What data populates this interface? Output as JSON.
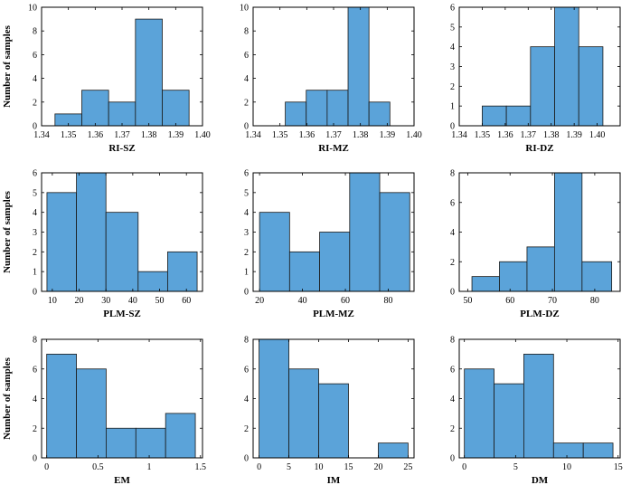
{
  "figure": {
    "bar_color": "#5ba3d9",
    "edge_color": "#1a1a1a"
  },
  "chart_data": [
    {
      "type": "bar",
      "name": "RI-SZ",
      "xlabel": "RI-SZ",
      "ylabel": "Number of samples",
      "bin_edges": [
        1.345,
        1.355,
        1.365,
        1.375,
        1.385,
        1.395
      ],
      "values": [
        1,
        3,
        2,
        9,
        3
      ],
      "xlim": [
        1.34,
        1.4
      ],
      "ylim": [
        0,
        10
      ],
      "xticks": [
        1.34,
        1.35,
        1.36,
        1.37,
        1.38,
        1.39,
        1.4
      ],
      "xtick_labels": [
        "1.34",
        "1.35",
        "1.36",
        "1.37",
        "1.38",
        "1.39",
        "1.40"
      ],
      "yticks": [
        0,
        2,
        4,
        6,
        8,
        10
      ],
      "ytick_labels": [
        "0",
        "2",
        "4",
        "6",
        "8",
        "10"
      ]
    },
    {
      "type": "bar",
      "name": "RI-MZ",
      "xlabel": "RI-MZ",
      "ylabel": "",
      "bin_edges": [
        1.352,
        1.3598,
        1.3676,
        1.3754,
        1.3832,
        1.391
      ],
      "values": [
        2,
        3,
        3,
        10,
        2
      ],
      "xlim": [
        1.34,
        1.4
      ],
      "ylim": [
        0,
        10
      ],
      "xticks": [
        1.34,
        1.35,
        1.36,
        1.37,
        1.38,
        1.39,
        1.4
      ],
      "xtick_labels": [
        "1.34",
        "1.35",
        "1.36",
        "1.37",
        "1.38",
        "1.39",
        "1.40"
      ],
      "yticks": [
        0,
        2,
        4,
        6,
        8,
        10
      ],
      "ytick_labels": [
        "0",
        "2",
        "4",
        "6",
        "8",
        "10"
      ]
    },
    {
      "type": "bar",
      "name": "RI-DZ",
      "xlabel": "RI-DZ",
      "ylabel": "",
      "bin_edges": [
        1.35,
        1.3605,
        1.371,
        1.3815,
        1.392,
        1.4025
      ],
      "values": [
        1,
        1,
        4,
        6,
        4
      ],
      "xlim": [
        1.34,
        1.41
      ],
      "ylim": [
        0,
        6
      ],
      "xticks": [
        1.34,
        1.35,
        1.36,
        1.37,
        1.38,
        1.39,
        1.4
      ],
      "xtick_labels": [
        "1.34",
        "1.35",
        "1.36",
        "1.37",
        "1.38",
        "1.39",
        "1.40"
      ],
      "yticks": [
        0,
        1,
        2,
        3,
        4,
        5,
        6
      ],
      "ytick_labels": [
        "0",
        "1",
        "2",
        "3",
        "4",
        "5",
        "6"
      ]
    },
    {
      "type": "bar",
      "name": "PLM-SZ",
      "xlabel": "PLM-SZ",
      "ylabel": "Number of samples",
      "bin_edges": [
        8,
        19,
        30,
        42,
        53,
        64
      ],
      "values": [
        5,
        6,
        4,
        1,
        2
      ],
      "xlim": [
        6,
        66
      ],
      "ylim": [
        0,
        6
      ],
      "xticks": [
        10,
        20,
        30,
        40,
        50,
        60
      ],
      "xtick_labels": [
        "10",
        "20",
        "30",
        "40",
        "50",
        "60"
      ],
      "yticks": [
        0,
        1,
        2,
        3,
        4,
        5,
        6
      ],
      "ytick_labels": [
        "0",
        "1",
        "2",
        "3",
        "4",
        "5",
        "6"
      ]
    },
    {
      "type": "bar",
      "name": "PLM-MZ",
      "xlabel": "PLM-MZ",
      "ylabel": "",
      "bin_edges": [
        20,
        34,
        48,
        62,
        76,
        90
      ],
      "values": [
        4,
        2,
        3,
        6,
        5
      ],
      "xlim": [
        17,
        92
      ],
      "ylim": [
        0,
        6
      ],
      "xticks": [
        20,
        40,
        60,
        80
      ],
      "xtick_labels": [
        "20",
        "40",
        "60",
        "80"
      ],
      "yticks": [
        0,
        1,
        2,
        3,
        4,
        5,
        6
      ],
      "ytick_labels": [
        "0",
        "1",
        "2",
        "3",
        "4",
        "5",
        "6"
      ]
    },
    {
      "type": "bar",
      "name": "PLM-DZ",
      "xlabel": "PLM-DZ",
      "ylabel": "",
      "bin_edges": [
        51,
        57.5,
        64,
        70.5,
        77,
        84
      ],
      "values": [
        1,
        2,
        3,
        8,
        2
      ],
      "xlim": [
        48,
        86
      ],
      "ylim": [
        0,
        8
      ],
      "xticks": [
        50,
        60,
        70,
        80
      ],
      "xtick_labels": [
        "50",
        "60",
        "70",
        "80"
      ],
      "yticks": [
        0,
        2,
        4,
        6,
        8
      ],
      "ytick_labels": [
        "0",
        "2",
        "4",
        "6",
        "8"
      ]
    },
    {
      "type": "bar",
      "name": "EM",
      "xlabel": "EM",
      "ylabel": "Number of samples",
      "bin_edges": [
        0,
        0.29,
        0.58,
        0.87,
        1.16,
        1.45
      ],
      "values": [
        7,
        6,
        2,
        2,
        3
      ],
      "xlim": [
        -0.05,
        1.52
      ],
      "ylim": [
        0,
        8
      ],
      "xticks": [
        0,
        0.5,
        1,
        1.5
      ],
      "xtick_labels": [
        "0",
        "0.5",
        "1",
        "1.5"
      ],
      "yticks": [
        0,
        2,
        4,
        6,
        8
      ],
      "ytick_labels": [
        "0",
        "2",
        "4",
        "6",
        "8"
      ]
    },
    {
      "type": "bar",
      "name": "IM",
      "xlabel": "IM",
      "ylabel": "",
      "bin_edges": [
        0,
        5,
        10,
        15,
        20,
        25
      ],
      "values": [
        8,
        6,
        5,
        0,
        1
      ],
      "xlim": [
        -1,
        26
      ],
      "ylim": [
        0,
        8
      ],
      "xticks": [
        0,
        5,
        10,
        15,
        20,
        25
      ],
      "xtick_labels": [
        "0",
        "5",
        "10",
        "15",
        "20",
        "25"
      ],
      "yticks": [
        0,
        2,
        4,
        6,
        8
      ],
      "ytick_labels": [
        "0",
        "2",
        "4",
        "6",
        "8"
      ]
    },
    {
      "type": "bar",
      "name": "DM",
      "xlabel": "DM",
      "ylabel": "",
      "bin_edges": [
        0,
        2.9,
        5.8,
        8.7,
        11.6,
        14.5
      ],
      "values": [
        6,
        5,
        7,
        1,
        1
      ],
      "xlim": [
        -0.5,
        15.2
      ],
      "ylim": [
        0,
        8
      ],
      "xticks": [
        0,
        5,
        10,
        15
      ],
      "xtick_labels": [
        "0",
        "5",
        "10",
        "15"
      ],
      "yticks": [
        0,
        2,
        4,
        6,
        8
      ],
      "ytick_labels": [
        "0",
        "2",
        "4",
        "6",
        "8"
      ]
    }
  ]
}
